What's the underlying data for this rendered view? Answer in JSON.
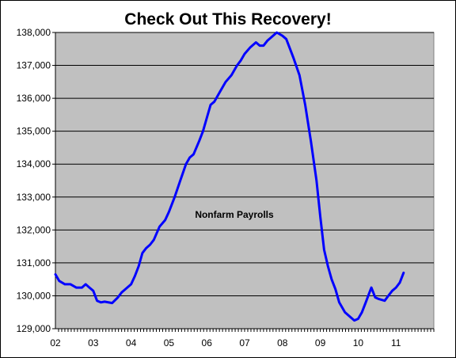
{
  "chart_data": {
    "type": "line",
    "title": "Check Out This Recovery!",
    "annotation": "Nonfarm Payrolls",
    "xlim": [
      2002,
      2012
    ],
    "ylim": [
      129000,
      138000
    ],
    "x_tick_labels": [
      "02",
      "03",
      "04",
      "05",
      "06",
      "07",
      "08",
      "09",
      "10",
      "11"
    ],
    "x_tick_values": [
      2002,
      2003,
      2004,
      2005,
      2006,
      2007,
      2008,
      2009,
      2010,
      2011
    ],
    "y_ticks": [
      129000,
      130000,
      131000,
      132000,
      133000,
      134000,
      135000,
      136000,
      137000,
      138000
    ],
    "y_tick_labels": [
      "129,000",
      "130,000",
      "131,000",
      "132,000",
      "133,000",
      "134,000",
      "135,000",
      "136,000",
      "137,000",
      "138,000"
    ],
    "grid": "horizontal",
    "plot_background": "#c0c0c0",
    "line_color": "#0000ff",
    "series": [
      {
        "x": [
          2002.0,
          2002.1,
          2002.25,
          2002.4,
          2002.55,
          2002.7,
          2002.8,
          2002.9,
          2003.0,
          2003.1,
          2003.2,
          2003.3,
          2003.5,
          2003.65,
          2003.75,
          2003.85,
          2004.0,
          2004.1,
          2004.2,
          2004.3,
          2004.4,
          2004.5,
          2004.6,
          2004.75,
          2004.9,
          2005.0,
          2005.15,
          2005.3,
          2005.45,
          2005.55,
          2005.65,
          2005.8,
          2005.9,
          2006.0,
          2006.1,
          2006.2,
          2006.35,
          2006.5,
          2006.65,
          2006.8,
          2006.9,
          2007.0,
          2007.15,
          2007.3,
          2007.4,
          2007.5,
          2007.6,
          2007.7,
          2007.85,
          2008.0,
          2008.1,
          2008.2,
          2008.3,
          2008.45,
          2008.6,
          2008.75,
          2008.9,
          2009.0,
          2009.1,
          2009.2,
          2009.3,
          2009.4,
          2009.5,
          2009.65,
          2009.8,
          2009.9,
          2010.0,
          2010.1,
          2010.2,
          2010.3,
          2010.35,
          2010.45,
          2010.55,
          2010.7,
          2010.8,
          2010.9,
          2011.0,
          2011.1,
          2011.2
        ],
        "y": [
          130650,
          130450,
          130350,
          130350,
          130250,
          130250,
          130350,
          130250,
          130150,
          129850,
          129800,
          129820,
          129780,
          129950,
          130100,
          130200,
          130350,
          130600,
          130900,
          131300,
          131450,
          131550,
          131700,
          132100,
          132300,
          132550,
          133000,
          133500,
          134000,
          134200,
          134300,
          134700,
          135000,
          135400,
          135800,
          135900,
          136200,
          136500,
          136700,
          137000,
          137150,
          137350,
          137550,
          137700,
          137600,
          137600,
          137750,
          137850,
          138000,
          137900,
          137800,
          137500,
          137200,
          136700,
          135800,
          134700,
          133500,
          132400,
          131400,
          130900,
          130500,
          130200,
          129800,
          129500,
          129350,
          129250,
          129300,
          129500,
          129800,
          130100,
          130250,
          129950,
          129900,
          129850,
          130000,
          130150,
          130250,
          130400,
          130700
        ]
      }
    ]
  }
}
